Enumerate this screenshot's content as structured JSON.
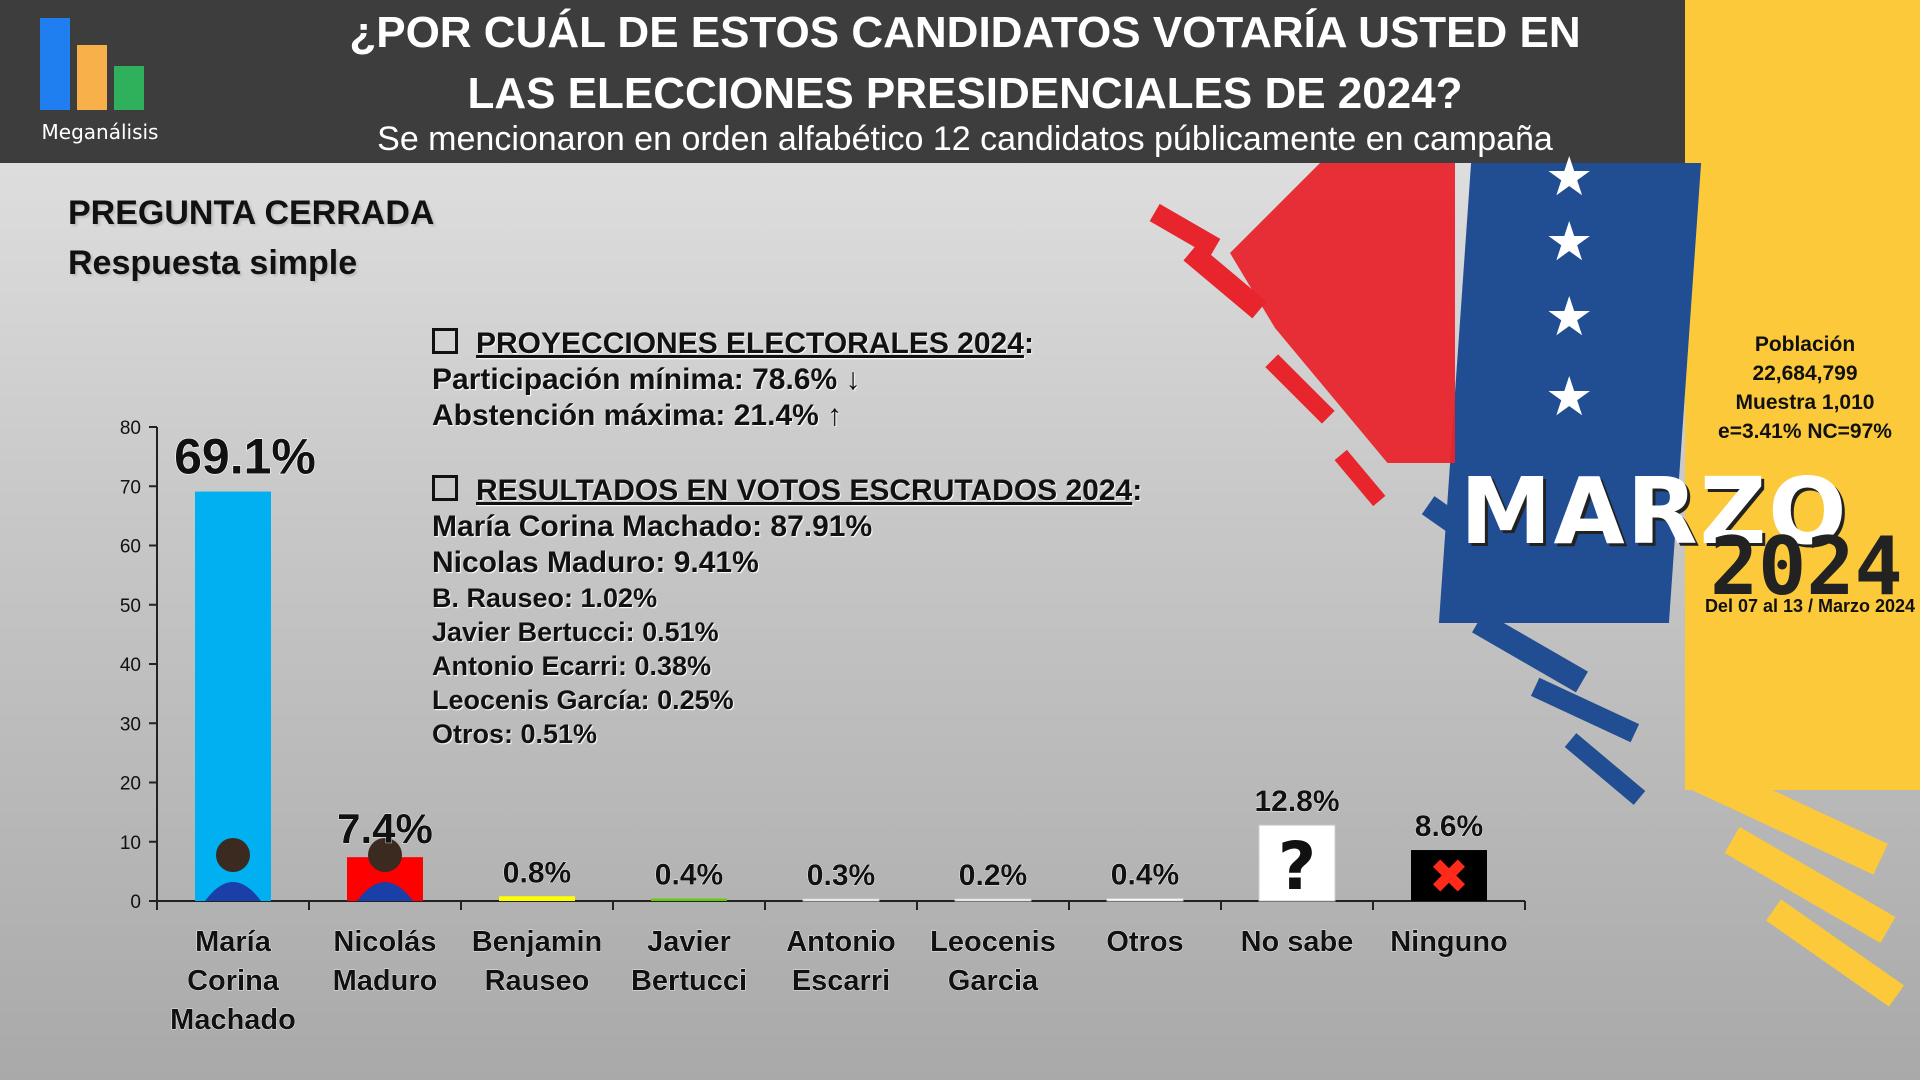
{
  "header": {
    "brand": "Meganálisis",
    "title_line1": "¿POR CUÁL DE ESTOS CANDIDATOS VOTARÍA USTED EN",
    "title_line2": "LAS ELECCIONES PRESIDENCIALES DE 2024?",
    "subtitle": "Se mencionaron en orden alfabético 12 candidatos públicamente en campaña"
  },
  "question": {
    "type": "PREGUNTA  CERRADA",
    "mode": "Respuesta simple"
  },
  "projections": {
    "heading": "PROYECCIONES  ELECTORALES  2024",
    "heading_suffix": ":",
    "lines": [
      "Participación  mínima:  78.6% ↓",
      "Abstención  máxima:  21.4% ↑"
    ]
  },
  "results": {
    "heading": "RESULTADOS  EN  VOTOS  ESCRUTADOS  2024",
    "heading_suffix": ":",
    "main_lines": [
      "María  Corina  Machado: 87.91%",
      "Nicolas  Maduro: 9.41%"
    ],
    "minor_lines": [
      "B. Rauseo: 1.02%",
      "Javier  Bertucci: 0.51%",
      "Antonio  Ecarri: 0.38%",
      "Leocenis  García: 0.25%",
      "Otros: 0.51%"
    ]
  },
  "sample": {
    "lines": [
      "Población",
      "22,684,799",
      "Muestra 1,010",
      "e=3.41%  NC=97%"
    ]
  },
  "period": {
    "month": "MARZO",
    "year": "2024",
    "dates": "Del 07 al 13 / Marzo 2024"
  },
  "colors": {
    "header_bg": "#3d3d3d",
    "logo_blue": "#1f7ef0",
    "logo_orange": "#f7b04a",
    "logo_green": "#2fb15b",
    "flag_yellow": "#fbc93a",
    "flag_blue": "#214d93",
    "flag_red": "#e8242c"
  },
  "chart_data": {
    "type": "bar",
    "title": "",
    "xlabel": "",
    "ylabel": "",
    "ylim": [
      0,
      80
    ],
    "yticks": [
      0,
      10,
      20,
      30,
      40,
      50,
      60,
      70,
      80
    ],
    "grid": false,
    "categories": [
      [
        "María",
        "Corina",
        "Machado"
      ],
      [
        "Nicolás",
        "Maduro"
      ],
      [
        "Benjamin",
        "Rauseo"
      ],
      [
        "Javier",
        "Bertucci"
      ],
      [
        "Antonio",
        "Escarri"
      ],
      [
        "Leocenis",
        "Garcia"
      ],
      [
        "Otros"
      ],
      [
        "No sabe"
      ],
      [
        "Ninguno"
      ]
    ],
    "values": [
      69.1,
      7.4,
      0.8,
      0.4,
      0.3,
      0.2,
      0.4,
      12.8,
      8.6
    ],
    "labels": [
      "69.1%",
      "7.4%",
      "0.8%",
      "0.4%",
      "0.3%",
      "0.2%",
      "0.4%",
      "12.8%",
      "8.6%"
    ],
    "bar_colors": [
      "#00b0f0",
      "#ff0000",
      "#ffff00",
      "#66cc00",
      "#ffffff",
      "#ffffff",
      "#ffffff",
      "#ffffff",
      "#000000"
    ],
    "bar_icons": [
      "person-photo",
      "person-photo",
      "",
      "",
      "",
      "",
      "",
      "question-mark",
      "red-x"
    ]
  }
}
